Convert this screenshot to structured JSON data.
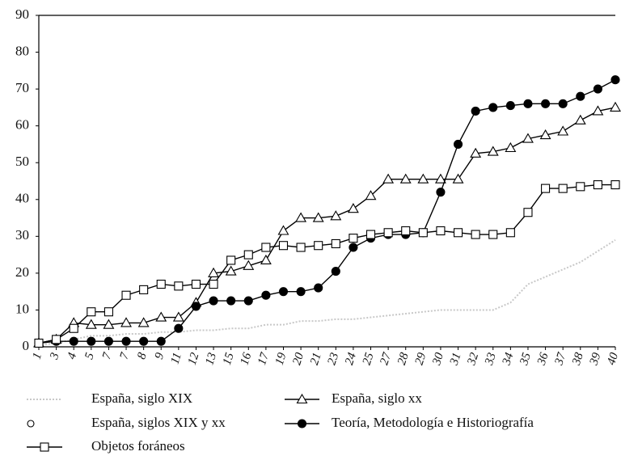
{
  "chart_data": {
    "type": "line",
    "categories": [
      "1",
      "3",
      "4",
      "5",
      "7",
      "7",
      "8",
      "9",
      "11",
      "12",
      "13",
      "15",
      "16",
      "17",
      "19",
      "20",
      "21",
      "23",
      "24",
      "25",
      "27",
      "28",
      "29",
      "30",
      "31",
      "32",
      "33",
      "34",
      "35",
      "36",
      "37",
      "38",
      "39",
      "40"
    ],
    "ylim": [
      0,
      90
    ],
    "yticks": [
      0,
      10,
      20,
      30,
      40,
      50,
      60,
      70,
      80,
      90
    ],
    "series": [
      {
        "name": "España, siglo XIX",
        "color": "#c8c8c8",
        "marker": "none",
        "dashed": true,
        "values": [
          0.5,
          1,
          2,
          3,
          3,
          3.5,
          3.5,
          4,
          4,
          4.5,
          4.5,
          5,
          5,
          6,
          6,
          7,
          7,
          7.5,
          7.5,
          8,
          8.5,
          9,
          9.5,
          10,
          10,
          10,
          10,
          12,
          17,
          19,
          21,
          23,
          26,
          29
        ]
      },
      {
        "name": "España, siglo xx",
        "color": "#000000",
        "marker": "triangle",
        "values": [
          1,
          2,
          6.5,
          6,
          6,
          6.5,
          6.5,
          8,
          8,
          12,
          20,
          20.5,
          22,
          23.5,
          31.5,
          35,
          35,
          35.5,
          37.5,
          41,
          45.5,
          45.5,
          45.5,
          45.5,
          45.5,
          52.5,
          53,
          54,
          56.5,
          57.5,
          58.5,
          61.5,
          64,
          65
        ]
      },
      {
        "name": "España, siglos XIX y xx",
        "color": "#000000",
        "marker": "open-circle",
        "values": [
          null,
          null,
          null,
          null,
          null,
          null,
          null,
          null,
          null,
          null,
          null,
          null,
          null,
          null,
          null,
          null,
          null,
          null,
          null,
          null,
          null,
          null,
          null,
          null,
          null,
          null,
          null,
          null,
          null,
          null,
          null,
          null,
          null,
          null
        ]
      },
      {
        "name": "Teoría, Metodología e Historiografía",
        "color": "#000000",
        "marker": "circle",
        "values": [
          1,
          1.5,
          1.5,
          1.5,
          1.5,
          1.5,
          1.5,
          1.5,
          5,
          11,
          12.5,
          12.5,
          12.5,
          14,
          15,
          15,
          16,
          20.5,
          27,
          29.5,
          30.5,
          30.5,
          31,
          42,
          55,
          64,
          65,
          65.5,
          66,
          66,
          66,
          68,
          70,
          72.5
        ]
      },
      {
        "name": "Objetos foráneos",
        "color": "#000000",
        "marker": "square",
        "values": [
          1,
          2,
          5,
          9.5,
          9.5,
          14,
          15.5,
          17,
          16.5,
          17,
          17,
          23.5,
          25,
          27,
          27.5,
          27,
          27.5,
          28,
          29.5,
          30.5,
          31,
          31.5,
          31,
          31.5,
          31,
          30.5,
          30.5,
          31,
          36.5,
          43,
          43,
          43.5,
          44,
          44
        ]
      }
    ]
  }
}
